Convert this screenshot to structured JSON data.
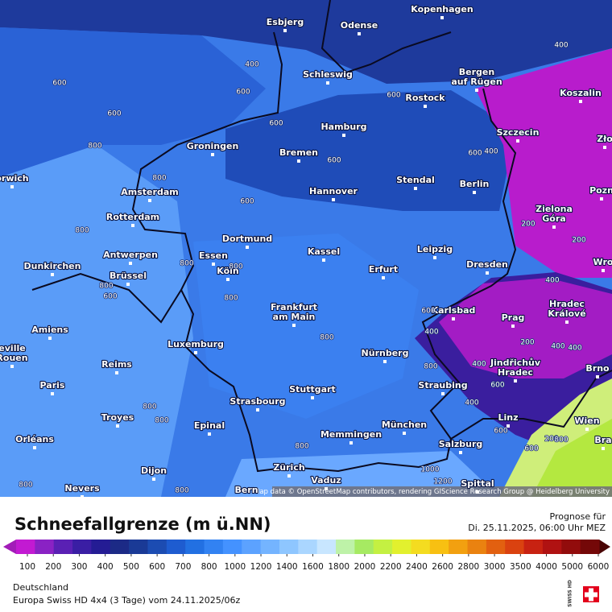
{
  "header": {
    "title": "Schneefallgrenze (m ü.NN)",
    "forecast_label": "Prognose für",
    "forecast_time": "Di. 25.11.2025, 06:00 Uhr MEZ"
  },
  "footer": {
    "region": "Deutschland",
    "model_run": "Europa Swiss HD 4x4 (3 Tage) vom  24.11.2025/06z",
    "logo_text": "SWISS HD"
  },
  "map": {
    "attribution": "Map data © OpenStreetMap contributors, rendering GIScience Research Group @ Heidelberg University",
    "cities": [
      {
        "label": [
          "Esbjerg"
        ]
      },
      {
        "label": [
          "Odense"
        ]
      },
      {
        "label": [
          "Kopenhagen"
        ]
      },
      {
        "label": [
          "Schleswig"
        ]
      },
      {
        "label": [
          "Bergen",
          "auf Rügen"
        ]
      },
      {
        "label": [
          "Koszalin"
        ]
      },
      {
        "label": [
          "Rostock"
        ]
      },
      {
        "label": [
          "Hamburg"
        ]
      },
      {
        "label": [
          "Szczecin"
        ]
      },
      {
        "label": [
          "Zło"
        ]
      },
      {
        "label": [
          "Groningen"
        ]
      },
      {
        "label": [
          "Bremen"
        ]
      },
      {
        "label": [
          "orwich"
        ]
      },
      {
        "label": [
          "Amsterdam"
        ]
      },
      {
        "label": [
          "Hannover"
        ]
      },
      {
        "label": [
          "Stendal"
        ]
      },
      {
        "label": [
          "Berlin"
        ]
      },
      {
        "label": [
          "Pozn"
        ]
      },
      {
        "label": [
          "Zielona",
          "Góra"
        ]
      },
      {
        "label": [
          "Rotterdam"
        ]
      },
      {
        "label": [
          "Dortmund"
        ]
      },
      {
        "label": [
          "Antwerpen"
        ]
      },
      {
        "label": [
          "Essen"
        ]
      },
      {
        "label": [
          "Kassel"
        ]
      },
      {
        "label": [
          "Leipzig"
        ]
      },
      {
        "label": [
          "Wro"
        ]
      },
      {
        "label": [
          "Dunkirchen"
        ]
      },
      {
        "label": [
          "Dresden"
        ]
      },
      {
        "label": [
          "Brüssel"
        ]
      },
      {
        "label": [
          "Köln"
        ]
      },
      {
        "label": [
          "Erfurt"
        ]
      },
      {
        "label": [
          "Hradec",
          "Králové"
        ]
      },
      {
        "label": [
          "Frankfurt",
          "am Main"
        ]
      },
      {
        "label": [
          "Karlsbad"
        ]
      },
      {
        "label": [
          "Prag"
        ]
      },
      {
        "label": [
          "Amiens"
        ]
      },
      {
        "label": [
          "Luxemburg"
        ]
      },
      {
        "label": [
          "Nürnberg"
        ]
      },
      {
        "label": [
          "eville",
          "Rouen"
        ]
      },
      {
        "label": [
          "Jindřichův",
          "Hradec"
        ]
      },
      {
        "label": [
          "Brno"
        ]
      },
      {
        "label": [
          "Reims"
        ]
      },
      {
        "label": [
          "Paris"
        ]
      },
      {
        "label": [
          "Straubing"
        ]
      },
      {
        "label": [
          "Stuttgart"
        ]
      },
      {
        "label": [
          "Strasbourg"
        ]
      },
      {
        "label": [
          "Troyes"
        ]
      },
      {
        "label": [
          "Epinal"
        ]
      },
      {
        "label": [
          "München"
        ]
      },
      {
        "label": [
          "Wien"
        ]
      },
      {
        "label": [
          "Memmingen"
        ]
      },
      {
        "label": [
          "Linz"
        ]
      },
      {
        "label": [
          "Orléans"
        ]
      },
      {
        "label": [
          "Salzburg"
        ]
      },
      {
        "label": [
          "Bra"
        ]
      },
      {
        "label": [
          "Dijon"
        ]
      },
      {
        "label": [
          "Zürich"
        ]
      },
      {
        "label": [
          "Vaduz"
        ]
      },
      {
        "label": [
          "Nevers"
        ]
      },
      {
        "label": [
          "Bern"
        ]
      },
      {
        "label": [
          "Spittal"
        ]
      }
    ],
    "contours": [
      400,
      400,
      600,
      600,
      600,
      600,
      600,
      800,
      600,
      400,
      600,
      800,
      600,
      200,
      200,
      800,
      800,
      800,
      800,
      400,
      600,
      800,
      600,
      400,
      200,
      400,
      400,
      800,
      800,
      400,
      600,
      400,
      800,
      800,
      600,
      800,
      600,
      800,
      1000,
      800,
      1200,
      200,
      800
    ]
  },
  "legend": {
    "ticks": [
      100,
      200,
      300,
      400,
      500,
      600,
      700,
      800,
      1000,
      1200,
      1400,
      1600,
      1800,
      2000,
      2200,
      2400,
      2600,
      2800,
      3000,
      3500,
      4000,
      5000,
      6000
    ],
    "low_color": "#a21cb8",
    "high_color": "#4a0404",
    "colors": [
      "#c21ad2",
      "#8a22c4",
      "#5a20b4",
      "#3a1ea4",
      "#241c94",
      "#1c2a86",
      "#1a3a96",
      "#1c4cb2",
      "#1e5cd0",
      "#2270e2",
      "#3282f2",
      "#4492ff",
      "#5ca2ff",
      "#74b4ff",
      "#8ec6ff",
      "#aad6ff",
      "#c8e6ff",
      "#bef2a8",
      "#a6ea62",
      "#c4f042",
      "#e2f02e",
      "#f4dc20",
      "#f8c012",
      "#f2a010",
      "#ea8210",
      "#e26010",
      "#da4210",
      "#c82212",
      "#b01212",
      "#920c0c",
      "#740808"
    ]
  }
}
